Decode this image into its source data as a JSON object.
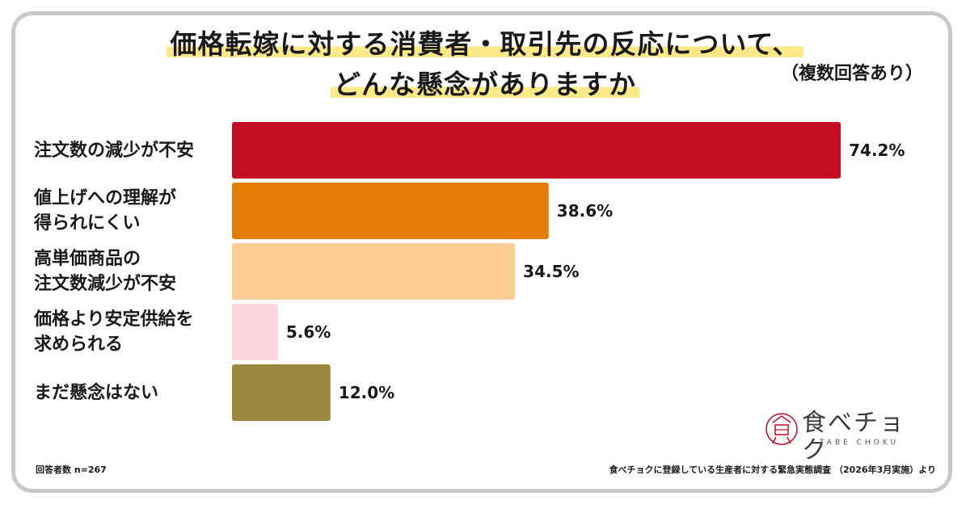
{
  "title": {
    "line1": "価格転嫁に対する消費者・取引先の反応について、",
    "line2": "どんな懸念がありますか",
    "note": "（複数回答あり）"
  },
  "chart_data": {
    "type": "bar",
    "orientation": "horizontal",
    "categories": [
      "注文数の減少が不安",
      "値上げへの理解が\n得られにくい",
      "高単価商品の\n注文数減少が不安",
      "価格より安定供給を\n求められる",
      "まだ懸念はない"
    ],
    "values": [
      74.2,
      38.6,
      34.5,
      5.6,
      12.0
    ],
    "value_labels": [
      "74.2%",
      "38.6%",
      "34.5%",
      "5.6%",
      "12.0%"
    ],
    "colors": [
      "#c30d23",
      "#e67d06",
      "#fdcd95",
      "#fdd5de",
      "#9e8741"
    ],
    "xlim": [
      0,
      100
    ],
    "grid": false,
    "legend": "none"
  },
  "footnote": {
    "respondents": "回答者数 n=267",
    "source": "食べチョクに登録している生産者に対する緊急実態調査 （2026年3月実施）より"
  },
  "logo": {
    "name": "食べチョク",
    "sub": "TABE CHOKU",
    "accent": "#c30d23"
  }
}
